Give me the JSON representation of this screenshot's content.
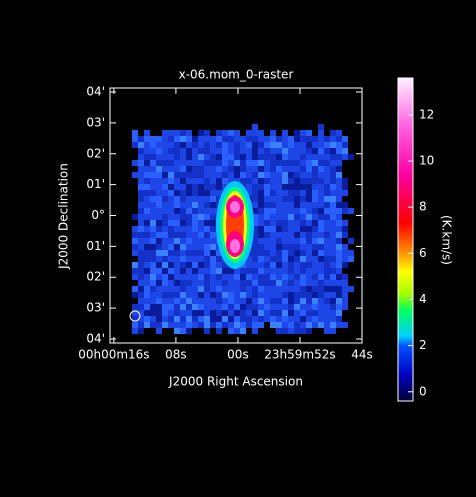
{
  "chart_data": {
    "type": "image",
    "title": "x-06.mom_0-raster",
    "xlabel": "J2000 Right Ascension",
    "ylabel": "J2000 Declination",
    "xlim": [
      16.5,
      -16
    ],
    "xticks": [
      {
        "value": 16,
        "label": "00h00m16s"
      },
      {
        "value": 8,
        "label": "08s"
      },
      {
        "value": 0,
        "label": "00s"
      },
      {
        "value": -8,
        "label": "23h59m52s"
      },
      {
        "value": -16,
        "label": "44s"
      }
    ],
    "ylim": [
      -4.13,
      4.13
    ],
    "yticks": [
      {
        "value": 4,
        "label": "04'"
      },
      {
        "value": 3,
        "label": "03'"
      },
      {
        "value": 2,
        "label": "02'"
      },
      {
        "value": 1,
        "label": "01'"
      },
      {
        "value": 0,
        "label": "0°"
      },
      {
        "value": -1,
        "label": "01'"
      },
      {
        "value": -2,
        "label": "02'"
      },
      {
        "value": -3,
        "label": "03'"
      },
      {
        "value": -4,
        "label": "04'"
      }
    ],
    "colorbar": {
      "label": "(K.km/s)",
      "lim": [
        -0.4,
        13.6
      ],
      "ticks": [
        0,
        2,
        4,
        6,
        8,
        10,
        12
      ]
    }
  }
}
